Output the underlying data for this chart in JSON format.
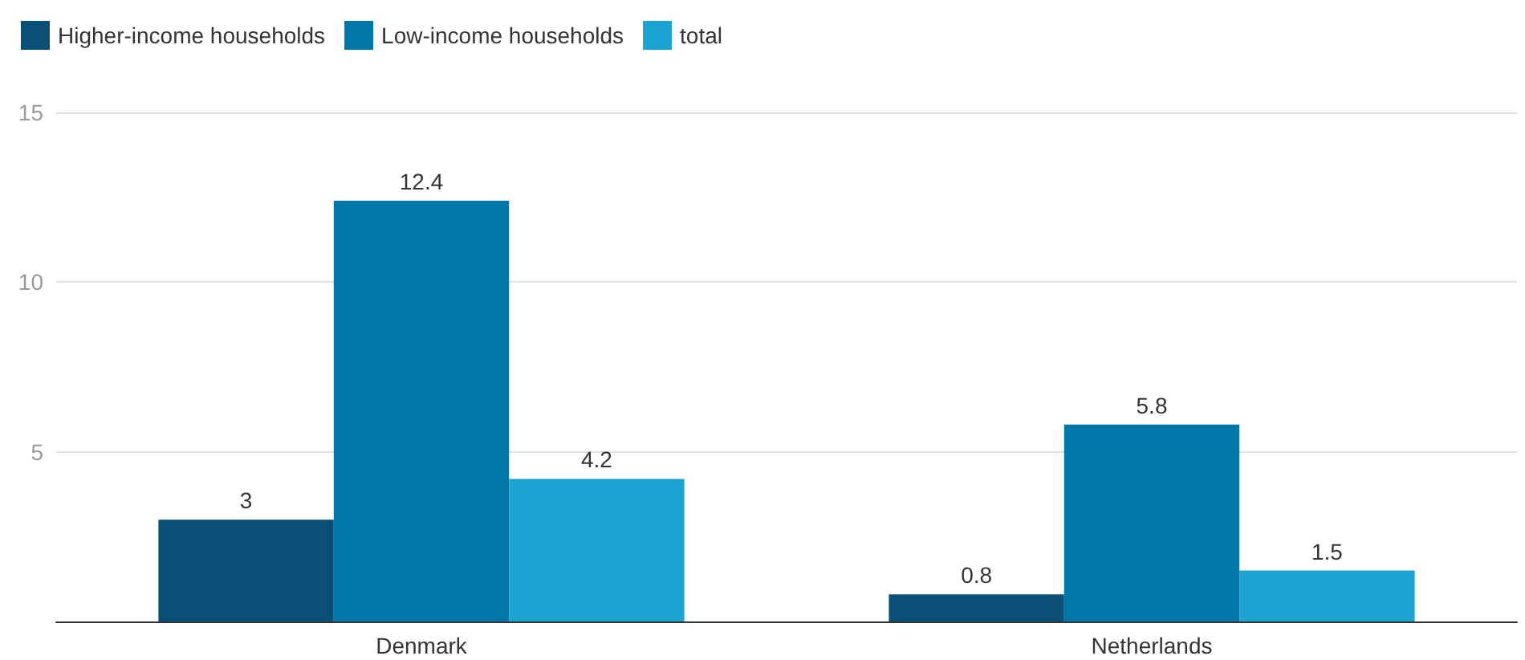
{
  "chart_data": {
    "type": "bar",
    "categories": [
      "Denmark",
      "Netherlands"
    ],
    "series": [
      {
        "name": "Higher-income households",
        "color": "#0b4f77",
        "values": [
          3,
          0.8
        ]
      },
      {
        "name": "Low-income households",
        "color": "#0077a6",
        "values": [
          12.4,
          5.8
        ]
      },
      {
        "name": "total",
        "color": "#1ba3d1",
        "values": [
          4.2,
          1.5
        ]
      }
    ],
    "ylim": [
      0,
      15
    ],
    "yticks": [
      {
        "value": 0,
        "label": null
      },
      5,
      10,
      15
    ],
    "grid": "y",
    "legend": "top left",
    "data_labels": true
  }
}
